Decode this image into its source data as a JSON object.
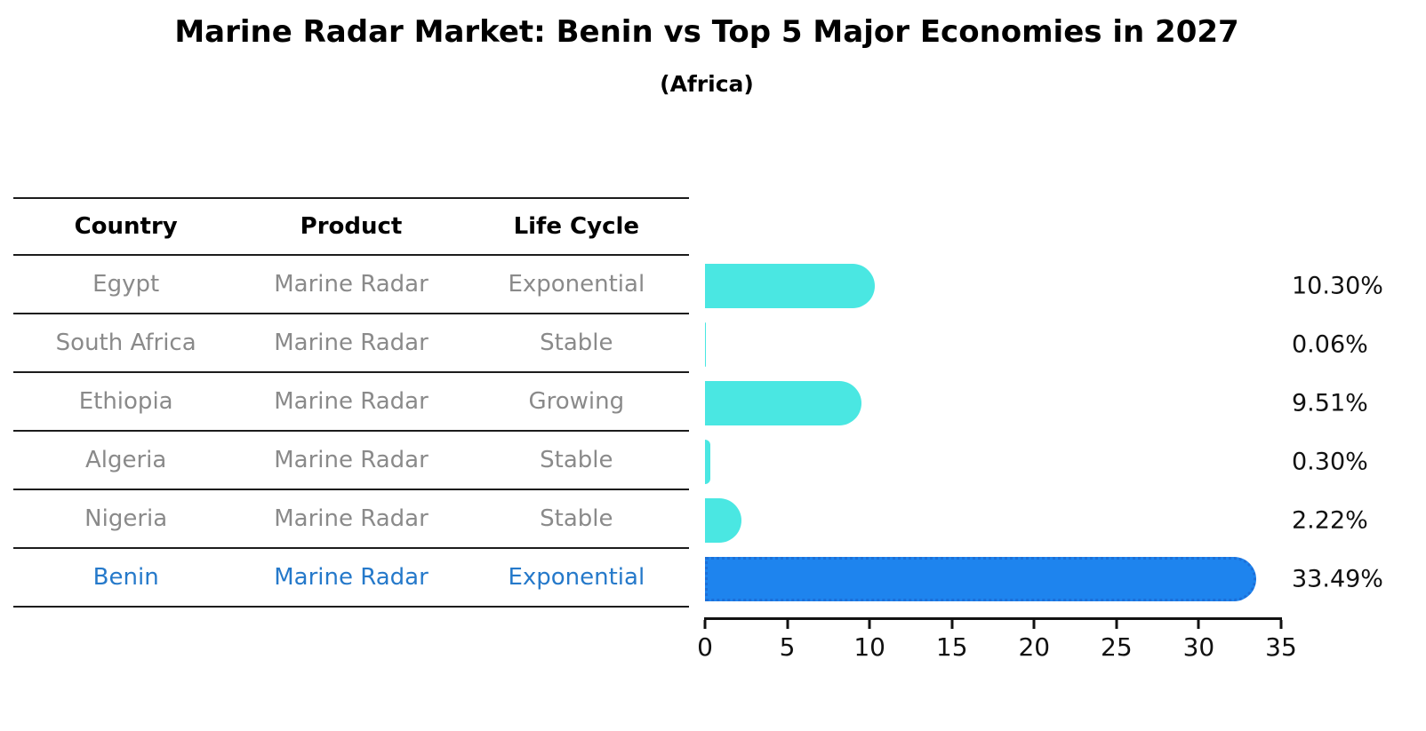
{
  "title": "Marine Radar Market: Benin vs Top 5 Major Economies in 2027",
  "subtitle": "(Africa)",
  "table": {
    "headers": [
      "Country",
      "Product",
      "Life Cycle"
    ],
    "rows": [
      {
        "country": "Egypt",
        "product": "Marine Radar",
        "life_cycle": "Exponential",
        "highlighted": false
      },
      {
        "country": "South Africa",
        "product": "Marine Radar",
        "life_cycle": "Stable",
        "highlighted": false
      },
      {
        "country": "Ethiopia",
        "product": "Marine Radar",
        "life_cycle": "Growing",
        "highlighted": false
      },
      {
        "country": "Algeria",
        "product": "Marine Radar",
        "life_cycle": "Stable",
        "highlighted": false
      },
      {
        "country": "Nigeria",
        "product": "Marine Radar",
        "life_cycle": "Stable",
        "highlighted": false
      },
      {
        "country": "Benin",
        "product": "Marine Radar",
        "life_cycle": "Exponential",
        "highlighted": true
      }
    ]
  },
  "chart_data": {
    "type": "bar",
    "orientation": "horizontal",
    "title": "Marine Radar Market: Benin vs Top 5 Major Economies in 2027",
    "subtitle": "(Africa)",
    "categories": [
      "Egypt",
      "South Africa",
      "Ethiopia",
      "Algeria",
      "Nigeria",
      "Benin"
    ],
    "values": [
      10.3,
      0.06,
      9.51,
      0.3,
      2.22,
      33.49
    ],
    "value_labels": [
      "10.30%",
      "0.06%",
      "9.51%",
      "0.30%",
      "2.22%",
      "33.49%"
    ],
    "xlabel": "",
    "ylabel": "",
    "xlim": [
      0,
      35
    ],
    "xticks": [
      0,
      5,
      10,
      15,
      20,
      25,
      30,
      35
    ],
    "grid": false,
    "legend": "none",
    "bar_color": "#4AE7E2",
    "highlight_index": 5,
    "highlight_color": "#1E84EE",
    "highlight_border_color": "#1C6FD8"
  },
  "colors": {
    "header_text": "#000000",
    "row_text": "#8A8A8A",
    "highlight_text": "#2579CA",
    "axis": "#111111",
    "separator": "#1C1C1C",
    "background": "#FFFFFF"
  }
}
